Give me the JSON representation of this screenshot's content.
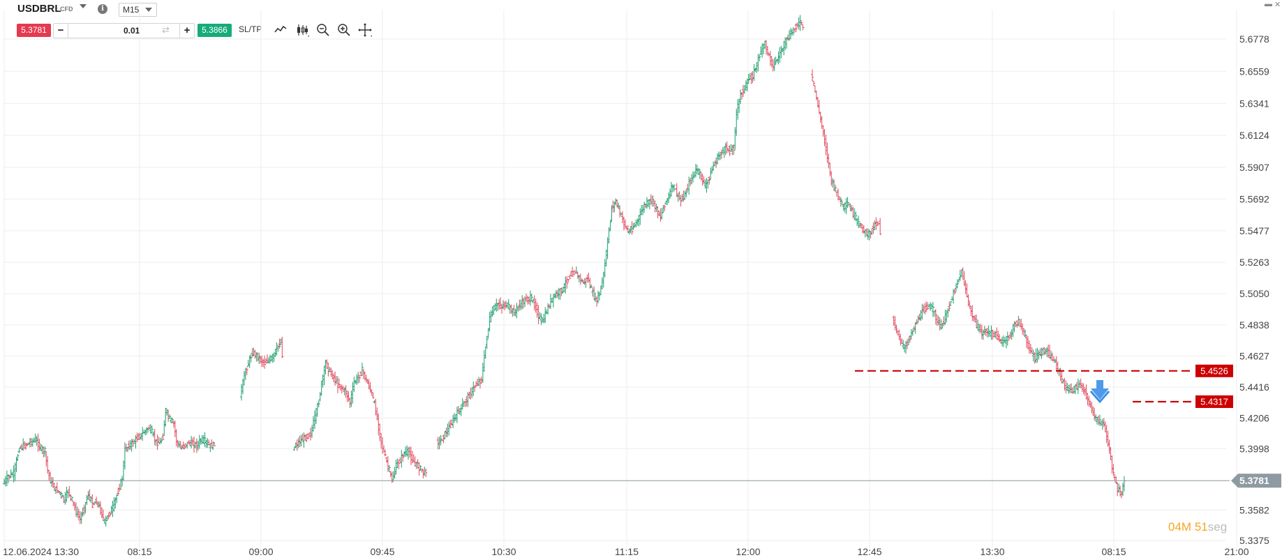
{
  "toolbar": {
    "symbol": "USDBRL",
    "instrument_type": "CFD",
    "info_icon": "i",
    "timeframe": "M15",
    "sell_price": "5.3781",
    "quantity": "0.01",
    "buy_price": "5.3866",
    "sltp_label": "SL/TP",
    "icons": [
      "line-chart-icon",
      "candlestick-icon",
      "zoom-out-icon",
      "zoom-in-icon",
      "crosshair-icon"
    ],
    "minus_label": "−",
    "plus_label": "+"
  },
  "timer": {
    "minutes": "04",
    "minutes_unit": "M",
    "seconds": "51",
    "seconds_unit": "seg"
  },
  "colors": {
    "sell": "#e53950",
    "buy": "#16ab7b",
    "bull": "#1a9c6c",
    "bear": "#e0455a",
    "level": "#cc0000",
    "current_price": "#8d9aa1",
    "arrow": "#3b8fe8"
  },
  "chart_data": {
    "type": "candlestick",
    "symbol": "USDBRL",
    "timeframe": "M15",
    "y_ticks": [
      "5.6778",
      "5.6559",
      "5.6341",
      "5.6124",
      "5.5907",
      "5.5692",
      "5.5477",
      "5.5263",
      "5.5050",
      "5.4838",
      "5.4627",
      "5.4416",
      "5.4206",
      "5.3998",
      "5.3781",
      "5.3582",
      "5.3375"
    ],
    "x_ticks": [
      "12.06.2024 13:30",
      "08:15",
      "09:00",
      "09:45",
      "10:30",
      "11:15",
      "12:00",
      "12:45",
      "13:30",
      "08:15",
      "21:00"
    ],
    "ylim": [
      5.3375,
      5.69
    ],
    "current_price": "5.3781",
    "levels": [
      {
        "price": 5.4526,
        "label": "5.4526"
      },
      {
        "price": 5.4317,
        "label": "5.4317"
      }
    ],
    "signal": "down-arrow",
    "grid": true,
    "close_path": [
      [
        0,
        5.376
      ],
      [
        4,
        5.381
      ],
      [
        8,
        5.383
      ],
      [
        12,
        5.4
      ],
      [
        16,
        5.402
      ],
      [
        20,
        5.404
      ],
      [
        24,
        5.406
      ],
      [
        28,
        5.4
      ],
      [
        31,
        5.398
      ],
      [
        33,
        5.385
      ],
      [
        35,
        5.378
      ],
      [
        38,
        5.373
      ],
      [
        42,
        5.37
      ],
      [
        45,
        5.365
      ],
      [
        48,
        5.371
      ],
      [
        51,
        5.365
      ],
      [
        54,
        5.357
      ],
      [
        57,
        5.352
      ],
      [
        60,
        5.36
      ],
      [
        63,
        5.369
      ],
      [
        66,
        5.362
      ],
      [
        69,
        5.364
      ],
      [
        72,
        5.358
      ],
      [
        75,
        5.35
      ],
      [
        78,
        5.355
      ],
      [
        81,
        5.36
      ],
      [
        84,
        5.368
      ],
      [
        86,
        5.374
      ],
      [
        88,
        5.38
      ],
      [
        90,
        5.399
      ],
      [
        93,
        5.402
      ],
      [
        96,
        5.404
      ],
      [
        99,
        5.407
      ],
      [
        102,
        5.409
      ],
      [
        105,
        5.412
      ],
      [
        108,
        5.414
      ],
      [
        110,
        5.411
      ],
      [
        113,
        5.404
      ],
      [
        116,
        5.404
      ],
      [
        118,
        5.408
      ],
      [
        120,
        5.426
      ],
      [
        123,
        5.42
      ],
      [
        126,
        5.417
      ],
      [
        128,
        5.405
      ],
      [
        131,
        5.4
      ],
      [
        134,
        5.402
      ],
      [
        137,
        5.404
      ],
      [
        140,
        5.403
      ],
      [
        143,
        5.402
      ],
      [
        146,
        5.406
      ],
      [
        149,
        5.405
      ],
      [
        152,
        5.402
      ],
      [
        155,
        5.402
      ],
      [
        175,
        5.436
      ],
      [
        178,
        5.449
      ],
      [
        181,
        5.458
      ],
      [
        184,
        5.465
      ],
      [
        187,
        5.463
      ],
      [
        190,
        5.46
      ],
      [
        193,
        5.458
      ],
      [
        196,
        5.46
      ],
      [
        199,
        5.462
      ],
      [
        202,
        5.468
      ],
      [
        205,
        5.472
      ],
      [
        214,
        5.399
      ],
      [
        216,
        5.402
      ],
      [
        218,
        5.404
      ],
      [
        221,
        5.406
      ],
      [
        224,
        5.408
      ],
      [
        227,
        5.41
      ],
      [
        230,
        5.421
      ],
      [
        233,
        5.432
      ],
      [
        235,
        5.444
      ],
      [
        238,
        5.458
      ],
      [
        241,
        5.452
      ],
      [
        244,
        5.448
      ],
      [
        247,
        5.443
      ],
      [
        250,
        5.441
      ],
      [
        253,
        5.438
      ],
      [
        256,
        5.431
      ],
      [
        259,
        5.445
      ],
      [
        262,
        5.448
      ],
      [
        265,
        5.453
      ],
      [
        268,
        5.446
      ],
      [
        271,
        5.44
      ],
      [
        274,
        5.43
      ],
      [
        276,
        5.42
      ],
      [
        279,
        5.404
      ],
      [
        282,
        5.394
      ],
      [
        285,
        5.385
      ],
      [
        287,
        5.378
      ],
      [
        290,
        5.388
      ],
      [
        293,
        5.392
      ],
      [
        296,
        5.397
      ],
      [
        299,
        5.398
      ],
      [
        302,
        5.392
      ],
      [
        305,
        5.389
      ],
      [
        308,
        5.386
      ],
      [
        311,
        5.383
      ],
      [
        320,
        5.404
      ],
      [
        323,
        5.405
      ],
      [
        326,
        5.41
      ],
      [
        329,
        5.414
      ],
      [
        332,
        5.419
      ],
      [
        335,
        5.424
      ],
      [
        338,
        5.428
      ],
      [
        341,
        5.432
      ],
      [
        344,
        5.436
      ],
      [
        347,
        5.441
      ],
      [
        350,
        5.444
      ],
      [
        353,
        5.447
      ],
      [
        356,
        5.469
      ],
      [
        359,
        5.488
      ],
      [
        362,
        5.495
      ],
      [
        365,
        5.498
      ],
      [
        368,
        5.496
      ],
      [
        371,
        5.498
      ],
      [
        374,
        5.495
      ],
      [
        377,
        5.492
      ],
      [
        380,
        5.496
      ],
      [
        383,
        5.499
      ],
      [
        386,
        5.501
      ],
      [
        389,
        5.502
      ],
      [
        392,
        5.498
      ],
      [
        395,
        5.49
      ],
      [
        398,
        5.486
      ],
      [
        401,
        5.493
      ],
      [
        404,
        5.5
      ],
      [
        407,
        5.504
      ],
      [
        410,
        5.506
      ],
      [
        413,
        5.508
      ],
      [
        416,
        5.514
      ],
      [
        419,
        5.518
      ],
      [
        422,
        5.52
      ],
      [
        425,
        5.516
      ],
      [
        428,
        5.512
      ],
      [
        431,
        5.516
      ],
      [
        434,
        5.508
      ],
      [
        437,
        5.5
      ],
      [
        440,
        5.505
      ],
      [
        443,
        5.518
      ],
      [
        446,
        5.54
      ],
      [
        449,
        5.563
      ],
      [
        452,
        5.568
      ],
      [
        455,
        5.56
      ],
      [
        458,
        5.553
      ],
      [
        461,
        5.547
      ],
      [
        464,
        5.549
      ],
      [
        467,
        5.553
      ],
      [
        470,
        5.559
      ],
      [
        473,
        5.565
      ],
      [
        476,
        5.567
      ],
      [
        479,
        5.569
      ],
      [
        482,
        5.562
      ],
      [
        485,
        5.557
      ],
      [
        488,
        5.566
      ],
      [
        491,
        5.571
      ],
      [
        494,
        5.579
      ],
      [
        497,
        5.573
      ],
      [
        500,
        5.568
      ],
      [
        503,
        5.572
      ],
      [
        506,
        5.58
      ],
      [
        509,
        5.585
      ],
      [
        512,
        5.59
      ],
      [
        515,
        5.584
      ],
      [
        518,
        5.578
      ],
      [
        521,
        5.584
      ],
      [
        524,
        5.592
      ],
      [
        527,
        5.597
      ],
      [
        530,
        5.601
      ],
      [
        533,
        5.604
      ],
      [
        536,
        5.602
      ],
      [
        539,
        5.604
      ],
      [
        541,
        5.628
      ],
      [
        544,
        5.64
      ],
      [
        547,
        5.645
      ],
      [
        550,
        5.65
      ],
      [
        553,
        5.653
      ],
      [
        556,
        5.661
      ],
      [
        559,
        5.67
      ],
      [
        562,
        5.675
      ],
      [
        565,
        5.666
      ],
      [
        568,
        5.66
      ],
      [
        571,
        5.664
      ],
      [
        574,
        5.67
      ],
      [
        577,
        5.676
      ],
      [
        580,
        5.68
      ],
      [
        583,
        5.684
      ],
      [
        586,
        5.688
      ],
      [
        589,
        5.689
      ],
      [
        596,
        5.655
      ],
      [
        599,
        5.642
      ],
      [
        602,
        5.628
      ],
      [
        605,
        5.614
      ],
      [
        608,
        5.598
      ],
      [
        611,
        5.582
      ],
      [
        614,
        5.575
      ],
      [
        617,
        5.569
      ],
      [
        620,
        5.564
      ],
      [
        623,
        5.566
      ],
      [
        626,
        5.561
      ],
      [
        629,
        5.556
      ],
      [
        632,
        5.551
      ],
      [
        635,
        5.548
      ],
      [
        638,
        5.545
      ],
      [
        640,
        5.547
      ],
      [
        643,
        5.552
      ],
      [
        646,
        5.553
      ],
      [
        656,
        5.488
      ],
      [
        659,
        5.481
      ],
      [
        662,
        5.472
      ],
      [
        665,
        5.468
      ],
      [
        668,
        5.474
      ],
      [
        671,
        5.48
      ],
      [
        674,
        5.486
      ],
      [
        677,
        5.491
      ],
      [
        680,
        5.495
      ],
      [
        683,
        5.497
      ],
      [
        686,
        5.494
      ],
      [
        689,
        5.487
      ],
      [
        692,
        5.482
      ],
      [
        695,
        5.489
      ],
      [
        698,
        5.497
      ],
      [
        701,
        5.505
      ],
      [
        704,
        5.513
      ],
      [
        707,
        5.52
      ],
      [
        710,
        5.508
      ],
      [
        713,
        5.495
      ],
      [
        716,
        5.488
      ],
      [
        719,
        5.482
      ],
      [
        722,
        5.478
      ],
      [
        725,
        5.48
      ],
      [
        728,
        5.478
      ],
      [
        731,
        5.478
      ],
      [
        734,
        5.475
      ],
      [
        737,
        5.472
      ],
      [
        740,
        5.474
      ],
      [
        743,
        5.477
      ],
      [
        746,
        5.484
      ],
      [
        749,
        5.486
      ],
      [
        752,
        5.481
      ],
      [
        755,
        5.472
      ],
      [
        758,
        5.466
      ],
      [
        761,
        5.461
      ],
      [
        764,
        5.464
      ],
      [
        767,
        5.466
      ],
      [
        770,
        5.466
      ],
      [
        773,
        5.462
      ],
      [
        776,
        5.458
      ],
      [
        779,
        5.452
      ],
      [
        782,
        5.444
      ],
      [
        785,
        5.44
      ],
      [
        788,
        5.439
      ],
      [
        791,
        5.441
      ],
      [
        794,
        5.443
      ],
      [
        797,
        5.44
      ],
      [
        800,
        5.434
      ],
      [
        803,
        5.426
      ],
      [
        806,
        5.42
      ],
      [
        809,
        5.418
      ],
      [
        812,
        5.416
      ],
      [
        816,
        5.399
      ],
      [
        819,
        5.382
      ],
      [
        822,
        5.372
      ],
      [
        825,
        5.37
      ],
      [
        827,
        5.378
      ]
    ]
  }
}
